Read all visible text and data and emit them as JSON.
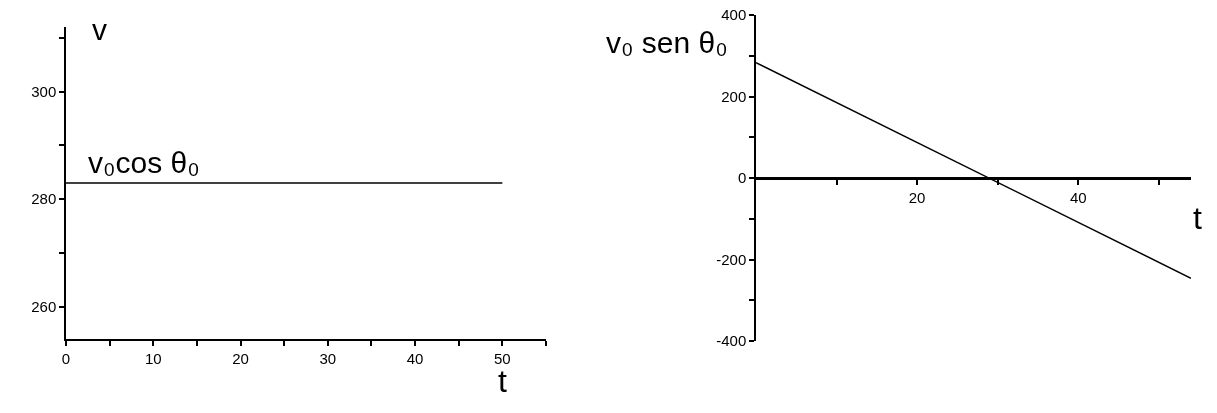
{
  "chart_data": [
    {
      "type": "line",
      "ylabel": "v",
      "xlabel": "t",
      "x": [
        0,
        50
      ],
      "series": [
        {
          "name": "v₀cos θ₀",
          "color": "#000000",
          "values": [
            283,
            283
          ]
        }
      ],
      "xlim": [
        0,
        55
      ],
      "xticks": [
        0,
        {
          "value": 5,
          "label": null
        },
        10,
        {
          "value": 15,
          "label": null
        },
        20,
        {
          "value": 25,
          "label": null
        },
        30,
        {
          "value": 35,
          "label": null
        },
        40,
        {
          "value": 45,
          "label": null
        },
        50,
        {
          "value": 55,
          "label": null
        }
      ],
      "ylim": [
        254,
        312
      ],
      "yticks": [
        260,
        {
          "value": 270,
          "label": null
        },
        280,
        {
          "value": 290,
          "label": null
        },
        300,
        {
          "value": 310,
          "label": null
        }
      ],
      "grid": false
    },
    {
      "type": "line",
      "ylabel": "v₀ sen θ₀",
      "xlabel": "t",
      "x": [
        0,
        54
      ],
      "series": [
        {
          "color": "#000000",
          "values": [
            283,
            -246
          ]
        }
      ],
      "xlim": [
        0,
        54
      ],
      "xticks": [
        {
          "value": 10,
          "label": null
        },
        20,
        {
          "value": 30,
          "label": null
        },
        40,
        {
          "value": 50,
          "label": null
        }
      ],
      "ylim": [
        -400,
        400
      ],
      "yticks": [
        -400,
        {
          "value": -300,
          "label": null
        },
        -200,
        {
          "value": -100,
          "label": null
        },
        0,
        {
          "value": 100,
          "label": null
        },
        200,
        {
          "value": 300,
          "label": null
        },
        400
      ],
      "grid": false
    }
  ]
}
